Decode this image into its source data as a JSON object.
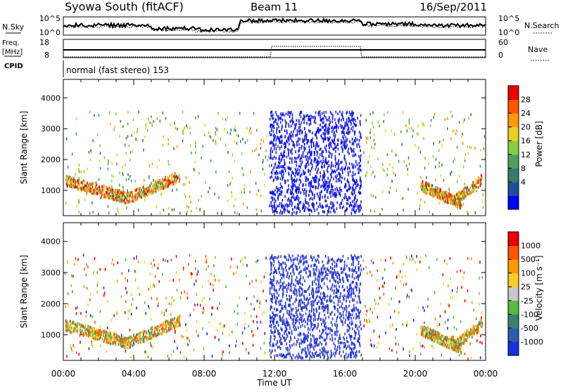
{
  "header": {
    "station": "Syowa South (fitACF)",
    "beam": "Beam 11",
    "date": "16/Sep/2011"
  },
  "noise_panel": {
    "left_label": "N.Sky",
    "left_ticks": [
      "10^5",
      "10^0"
    ],
    "right_ticks": [
      "10^5",
      "10^0"
    ],
    "right_label": "N.Search"
  },
  "freq_panel": {
    "left_label_line1": "Freq.",
    "left_label_line2": "[MHz]",
    "left_ticks": [
      "18",
      "8"
    ],
    "right_ticks": [
      "60",
      "0"
    ],
    "right_label": "Nave"
  },
  "cpid_panel": {
    "label": "CPID",
    "text": "normal (fast stereo) 153"
  },
  "chart_data": [
    {
      "type": "heatmap",
      "name": "power",
      "ylabel": "Slant Range [km]",
      "yticks": [
        1000,
        2000,
        3000,
        4000
      ],
      "ylim": [
        180,
        4600
      ],
      "xlim_hours": [
        0,
        24
      ],
      "colorbar_label": "Power [dB]",
      "colorbar_ticks": [
        "28",
        "24",
        "20",
        "16",
        "12",
        "8",
        "4"
      ],
      "colorbar_colors": [
        "#0000ff",
        "#1f4f9a",
        "#3a7a6a",
        "#4f9f5f",
        "#88cc44",
        "#e8d020",
        "#ff9900",
        "#ff5500",
        "#ee0000"
      ]
    },
    {
      "type": "heatmap",
      "name": "velocity",
      "ylabel": "Slant Range [km]",
      "yticks": [
        1000,
        2000,
        3000,
        4000
      ],
      "ylim": [
        180,
        4600
      ],
      "xlim_hours": [
        0,
        24
      ],
      "colorbar_label": "Velocity [m s⁻¹]",
      "colorbar_ticks": [
        "1000",
        "500",
        "100",
        "25",
        "-25",
        "-100",
        "-500",
        "-1000"
      ],
      "colorbar_colors": [
        "#1a2ee0",
        "#2f5ab0",
        "#3a8070",
        "#55bb44",
        "#c8c8c8",
        "#ffcc22",
        "#ff9900",
        "#ff5500",
        "#ee0000"
      ]
    }
  ],
  "time_axis": {
    "labels": [
      "00:00",
      "04:00",
      "08:00",
      "12:00",
      "16:00",
      "20:00",
      "00:00"
    ],
    "title": "Time UT"
  }
}
